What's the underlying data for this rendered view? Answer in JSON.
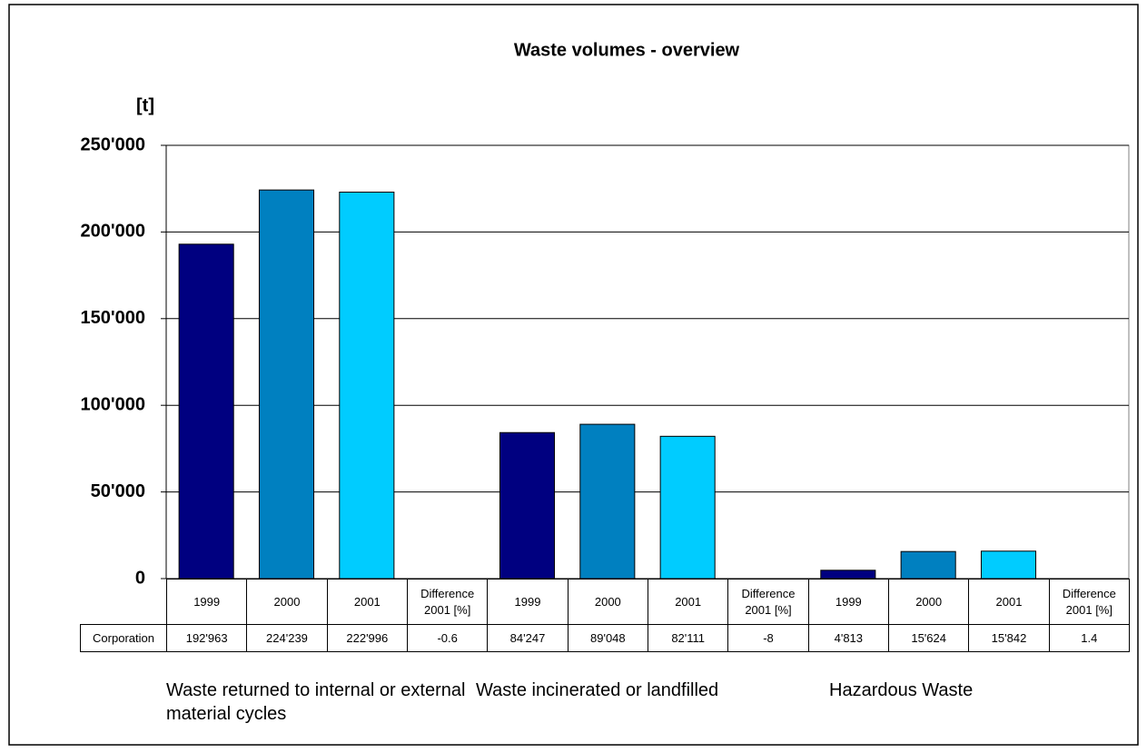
{
  "chart_data": {
    "type": "bar",
    "title": "Waste volumes - overview",
    "y_label": "[t]",
    "categories": [
      "1999",
      "2000",
      "2001",
      "Difference 2001 [%]",
      "1999",
      "2000",
      "2001",
      "Difference 2001 [%]",
      "1999",
      "2000",
      "2001",
      "Difference 2001 [%]"
    ],
    "series": [
      {
        "name": "Corporation",
        "values": [
          192963,
          224239,
          222996,
          null,
          84247,
          89048,
          82111,
          null,
          4813,
          15624,
          15842,
          null
        ],
        "value_labels": [
          "192'963",
          "224'239",
          "222'996",
          null,
          "84'247",
          "89'048",
          "82'111",
          null,
          "4'813",
          "15'624",
          "15'842",
          null
        ]
      }
    ],
    "differences": [
      -0.6,
      -8,
      1.4
    ],
    "colors": [
      "#000080",
      "#0080c0",
      "#00ccff"
    ],
    "groups": [
      "Waste returned to internal or external material cycles",
      "Waste incinerated or landfilled",
      "Hazardous Waste"
    ],
    "ylim": [
      0,
      250000
    ],
    "yticks": [
      0,
      {
        "value": 50000,
        "label": "50'000"
      },
      {
        "value": 100000,
        "label": "100'000"
      },
      {
        "value": 150000,
        "label": "150'000"
      },
      {
        "value": 200000,
        "label": "200'000"
      },
      {
        "value": 250000,
        "label": "250'000"
      }
    ],
    "grid": true
  }
}
